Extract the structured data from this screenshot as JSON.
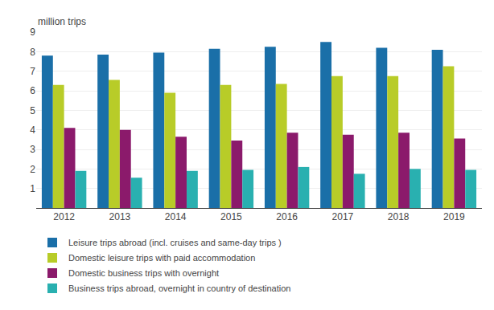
{
  "chart_data": {
    "type": "bar",
    "ylabel": "million trips",
    "categories": [
      "2012",
      "2013",
      "2014",
      "2015",
      "2016",
      "2017",
      "2018",
      "2019"
    ],
    "series": [
      {
        "name": "Leisure trips abroad (incl. cruises and same-day trips )",
        "color": "#1a6fa8",
        "values": [
          7.8,
          7.85,
          7.95,
          8.15,
          8.25,
          8.5,
          8.2,
          8.1
        ]
      },
      {
        "name": "Domestic leisure trips with paid accommodation",
        "color": "#b8cc28",
        "values": [
          6.3,
          6.55,
          5.9,
          6.3,
          6.35,
          6.75,
          6.75,
          7.25
        ]
      },
      {
        "name": "Domestic business trips with overnight",
        "color": "#8b1a6b",
        "values": [
          4.1,
          4.0,
          3.65,
          3.45,
          3.85,
          3.75,
          3.85,
          3.55
        ]
      },
      {
        "name": "Business trips abroad, overnight in country of destination",
        "color": "#29b0b0",
        "values": [
          1.9,
          1.55,
          1.9,
          1.95,
          2.1,
          1.75,
          2.0,
          1.95
        ]
      }
    ],
    "ylim": [
      0,
      9
    ],
    "yticks": [
      1,
      2,
      3,
      4,
      5,
      6,
      7,
      8,
      9
    ],
    "grid": true,
    "legend": "lower left"
  }
}
